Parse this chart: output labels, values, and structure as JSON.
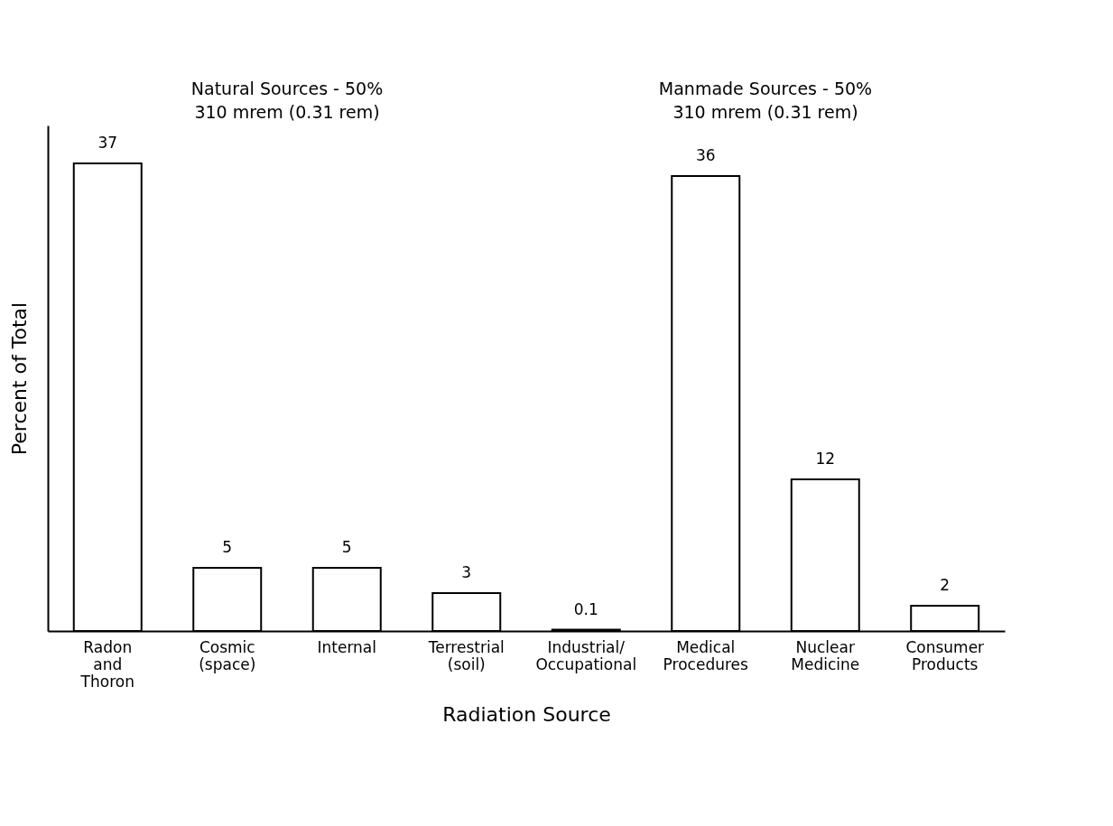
{
  "chart_data": {
    "type": "bar",
    "categories": [
      "Radon and Thoron",
      "Cosmic (space)",
      "Internal",
      "Terrestrial (soil)",
      "Industrial/Occupational",
      "Medical Procedures",
      "Nuclear Medicine",
      "Consumer Products"
    ],
    "values": [
      37,
      5,
      5,
      3,
      0.1,
      36,
      12,
      2
    ],
    "color": "#ffffff",
    "data_labels": true,
    "xlabel": "Radiation Source",
    "ylabel": "Percent of Total",
    "tick_labels": "x",
    "grid": false,
    "annotations": [
      "Natural Sources - 50%\n310 mrem (0.31 rem)",
      "Manmade Sources - 50%\n310 mrem (0.31 rem)"
    ]
  }
}
